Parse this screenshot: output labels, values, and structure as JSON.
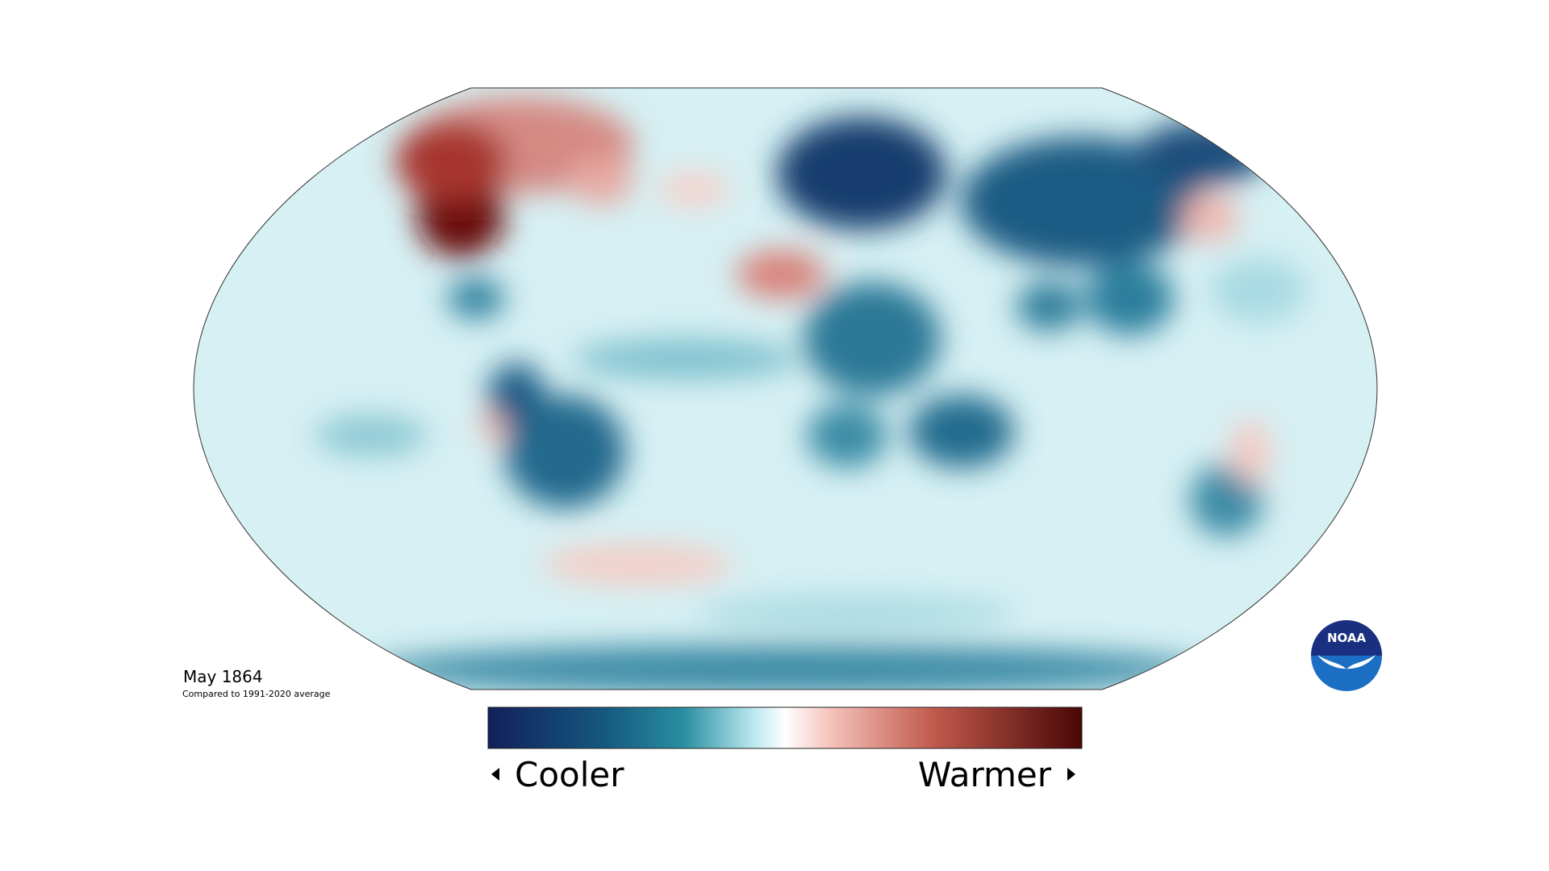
{
  "map": {
    "title": "May 1864",
    "subtitle": "Compared to 1991-2020 average",
    "legend": {
      "low": "Cooler",
      "high": "Warmer"
    },
    "logo": "NOAA"
  }
}
